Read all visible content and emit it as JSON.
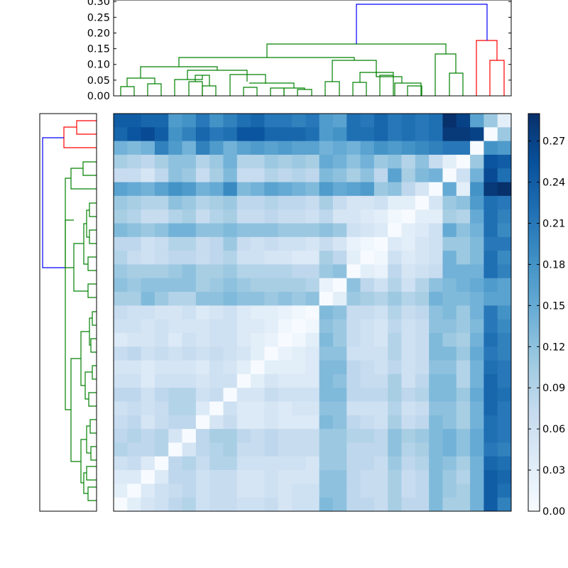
{
  "colors": {
    "cmap_low": "#f7fbff",
    "cmap_high": "#08306b",
    "link_root": "#0000ff",
    "cluster_big": "#008000",
    "cluster_small": "#ff0000",
    "frame": "#000000"
  },
  "chart_data": [
    {
      "type": "dendrogram",
      "orientation": "top",
      "title": "",
      "xlabel": "",
      "ylabel": "",
      "ylim": [
        0,
        0.3
      ],
      "yticks": [
        0.0,
        0.05,
        0.1,
        0.15,
        0.2,
        0.25,
        0.3
      ],
      "ytick_labels": [
        "0.00",
        "0.05",
        "0.10",
        "0.15",
        "0.20",
        "0.25",
        "0.30"
      ],
      "leaf_count": 29,
      "clusters": [
        {
          "color": "green",
          "leaves": 26
        },
        {
          "color": "red",
          "leaves": 3
        }
      ],
      "root_height": 0.29
    },
    {
      "type": "dendrogram",
      "orientation": "left",
      "title": "",
      "leaf_count": 29,
      "clusters": [
        {
          "color": "red",
          "leaves": 3
        },
        {
          "color": "green",
          "leaves": 26
        }
      ],
      "root_height": 0.29,
      "tick_labels_shown": false
    },
    {
      "type": "heatmap",
      "title": "",
      "xlabel": "",
      "ylabel": "",
      "rows": 29,
      "cols": 29,
      "colormap": "Blues",
      "row_order": "top-to-bottom",
      "matrix": [
        [
          0.24,
          0.24,
          0.23,
          0.23,
          0.17,
          0.18,
          0.21,
          0.18,
          0.2,
          0.22,
          0.23,
          0.21,
          0.21,
          0.2,
          0.21,
          0.17,
          0.16,
          0.22,
          0.21,
          0.23,
          0.21,
          0.22,
          0.21,
          0.22,
          0.29,
          0.27,
          0.16,
          0.11,
          0.03
        ],
        [
          0.23,
          0.25,
          0.26,
          0.24,
          0.18,
          0.2,
          0.23,
          0.21,
          0.22,
          0.25,
          0.25,
          0.23,
          0.23,
          0.23,
          0.22,
          0.17,
          0.18,
          0.22,
          0.22,
          0.23,
          0.21,
          0.22,
          0.21,
          0.22,
          0.28,
          0.28,
          0.27,
          0.0,
          0.11
        ],
        [
          0.14,
          0.13,
          0.14,
          0.2,
          0.17,
          0.14,
          0.2,
          0.17,
          0.14,
          0.16,
          0.17,
          0.16,
          0.17,
          0.16,
          0.16,
          0.14,
          0.15,
          0.14,
          0.16,
          0.18,
          0.17,
          0.18,
          0.19,
          0.2,
          0.21,
          0.21,
          0.0,
          0.18,
          0.17
        ],
        [
          0.1,
          0.09,
          0.08,
          0.1,
          0.12,
          0.12,
          0.09,
          0.11,
          0.14,
          0.09,
          0.09,
          0.11,
          0.1,
          0.11,
          0.1,
          0.15,
          0.14,
          0.12,
          0.14,
          0.11,
          0.12,
          0.09,
          0.12,
          0.07,
          0.03,
          0.0,
          0.11,
          0.25,
          0.24
        ],
        [
          0.07,
          0.07,
          0.05,
          0.08,
          0.12,
          0.11,
          0.07,
          0.1,
          0.13,
          0.07,
          0.07,
          0.09,
          0.08,
          0.09,
          0.08,
          0.13,
          0.12,
          0.1,
          0.12,
          0.08,
          0.16,
          0.1,
          0.13,
          0.14,
          0.0,
          0.06,
          0.14,
          0.26,
          0.22
        ],
        [
          0.16,
          0.15,
          0.14,
          0.16,
          0.18,
          0.17,
          0.14,
          0.15,
          0.19,
          0.13,
          0.14,
          0.16,
          0.15,
          0.14,
          0.13,
          0.17,
          0.15,
          0.16,
          0.17,
          0.11,
          0.12,
          0.08,
          0.05,
          0.0,
          0.15,
          0.03,
          0.18,
          0.28,
          0.29
        ],
        [
          0.11,
          0.1,
          0.09,
          0.09,
          0.12,
          0.11,
          0.09,
          0.1,
          0.11,
          0.08,
          0.08,
          0.09,
          0.08,
          0.08,
          0.07,
          0.1,
          0.07,
          0.05,
          0.05,
          0.06,
          0.03,
          0.03,
          0.0,
          0.05,
          0.11,
          0.12,
          0.17,
          0.22,
          0.21
        ],
        [
          0.1,
          0.09,
          0.07,
          0.07,
          0.09,
          0.1,
          0.07,
          0.09,
          0.1,
          0.07,
          0.07,
          0.08,
          0.07,
          0.07,
          0.06,
          0.08,
          0.05,
          0.05,
          0.04,
          0.03,
          0.01,
          0.0,
          0.03,
          0.03,
          0.1,
          0.09,
          0.15,
          0.22,
          0.2
        ],
        [
          0.13,
          0.12,
          0.11,
          0.12,
          0.14,
          0.14,
          0.12,
          0.12,
          0.13,
          0.12,
          0.12,
          0.12,
          0.11,
          0.11,
          0.11,
          0.12,
          0.11,
          0.06,
          0.05,
          0.04,
          0.0,
          0.03,
          0.04,
          0.06,
          0.15,
          0.12,
          0.14,
          0.22,
          0.19
        ],
        [
          0.08,
          0.08,
          0.06,
          0.07,
          0.09,
          0.09,
          0.07,
          0.08,
          0.11,
          0.07,
          0.06,
          0.07,
          0.06,
          0.06,
          0.05,
          0.07,
          0.05,
          0.02,
          0.01,
          0.0,
          0.04,
          0.03,
          0.05,
          0.06,
          0.11,
          0.11,
          0.13,
          0.21,
          0.21
        ],
        [
          0.09,
          0.07,
          0.06,
          0.07,
          0.08,
          0.08,
          0.07,
          0.08,
          0.09,
          0.06,
          0.06,
          0.05,
          0.05,
          0.04,
          0.04,
          0.1,
          0.08,
          0.03,
          0.0,
          0.01,
          0.06,
          0.04,
          0.05,
          0.06,
          0.14,
          0.11,
          0.13,
          0.22,
          0.19
        ],
        [
          0.11,
          0.1,
          0.1,
          0.1,
          0.11,
          0.12,
          0.1,
          0.1,
          0.11,
          0.09,
          0.09,
          0.09,
          0.09,
          0.08,
          0.08,
          0.11,
          0.12,
          0.0,
          0.03,
          0.02,
          0.08,
          0.05,
          0.06,
          0.07,
          0.14,
          0.14,
          0.14,
          0.22,
          0.2
        ],
        [
          0.12,
          0.11,
          0.12,
          0.12,
          0.12,
          0.12,
          0.1,
          0.11,
          0.12,
          0.11,
          0.1,
          0.1,
          0.1,
          0.1,
          0.09,
          0.02,
          0.0,
          0.12,
          0.08,
          0.06,
          0.09,
          0.06,
          0.09,
          0.12,
          0.13,
          0.14,
          0.15,
          0.17,
          0.16
        ],
        [
          0.1,
          0.1,
          0.13,
          0.11,
          0.09,
          0.09,
          0.12,
          0.12,
          0.13,
          0.12,
          0.12,
          0.11,
          0.12,
          0.11,
          0.12,
          0.0,
          0.03,
          0.11,
          0.1,
          0.09,
          0.11,
          0.09,
          0.1,
          0.14,
          0.13,
          0.13,
          0.14,
          0.16,
          0.16
        ],
        [
          0.07,
          0.06,
          0.06,
          0.05,
          0.05,
          0.06,
          0.04,
          0.05,
          0.06,
          0.04,
          0.03,
          0.03,
          0.02,
          0.01,
          0.0,
          0.13,
          0.12,
          0.07,
          0.07,
          0.06,
          0.09,
          0.07,
          0.08,
          0.12,
          0.13,
          0.11,
          0.14,
          0.21,
          0.18
        ],
        [
          0.06,
          0.06,
          0.05,
          0.06,
          0.05,
          0.05,
          0.05,
          0.06,
          0.06,
          0.04,
          0.04,
          0.03,
          0.01,
          0.0,
          0.01,
          0.12,
          0.11,
          0.07,
          0.06,
          0.05,
          0.08,
          0.06,
          0.07,
          0.12,
          0.12,
          0.11,
          0.13,
          0.21,
          0.19
        ],
        [
          0.04,
          0.05,
          0.05,
          0.06,
          0.04,
          0.06,
          0.05,
          0.06,
          0.06,
          0.04,
          0.03,
          0.02,
          0.0,
          0.01,
          0.03,
          0.13,
          0.11,
          0.07,
          0.06,
          0.05,
          0.09,
          0.06,
          0.07,
          0.13,
          0.11,
          0.1,
          0.14,
          0.22,
          0.2
        ],
        [
          0.07,
          0.08,
          0.06,
          0.07,
          0.06,
          0.07,
          0.06,
          0.07,
          0.06,
          0.05,
          0.03,
          0.0,
          0.02,
          0.03,
          0.04,
          0.12,
          0.12,
          0.06,
          0.06,
          0.06,
          0.09,
          0.06,
          0.07,
          0.13,
          0.13,
          0.11,
          0.15,
          0.21,
          0.2
        ],
        [
          0.05,
          0.05,
          0.04,
          0.05,
          0.05,
          0.05,
          0.04,
          0.06,
          0.05,
          0.03,
          0.0,
          0.03,
          0.03,
          0.03,
          0.04,
          0.13,
          0.13,
          0.08,
          0.07,
          0.06,
          0.08,
          0.06,
          0.07,
          0.12,
          0.12,
          0.09,
          0.14,
          0.22,
          0.21
        ],
        [
          0.06,
          0.06,
          0.04,
          0.06,
          0.06,
          0.06,
          0.05,
          0.06,
          0.06,
          0.0,
          0.03,
          0.05,
          0.04,
          0.04,
          0.04,
          0.13,
          0.12,
          0.08,
          0.07,
          0.07,
          0.1,
          0.06,
          0.08,
          0.13,
          0.13,
          0.09,
          0.14,
          0.23,
          0.21
        ],
        [
          0.08,
          0.08,
          0.06,
          0.08,
          0.09,
          0.09,
          0.06,
          0.07,
          0.0,
          0.05,
          0.05,
          0.07,
          0.06,
          0.06,
          0.06,
          0.13,
          0.13,
          0.08,
          0.08,
          0.08,
          0.1,
          0.08,
          0.09,
          0.13,
          0.13,
          0.11,
          0.15,
          0.23,
          0.22
        ],
        [
          0.06,
          0.07,
          0.06,
          0.07,
          0.09,
          0.09,
          0.04,
          0.0,
          0.06,
          0.04,
          0.04,
          0.05,
          0.04,
          0.05,
          0.05,
          0.12,
          0.12,
          0.06,
          0.06,
          0.06,
          0.09,
          0.06,
          0.07,
          0.12,
          0.12,
          0.1,
          0.14,
          0.23,
          0.21
        ],
        [
          0.07,
          0.08,
          0.05,
          0.07,
          0.08,
          0.08,
          0.0,
          0.05,
          0.07,
          0.04,
          0.04,
          0.05,
          0.04,
          0.04,
          0.04,
          0.13,
          0.12,
          0.08,
          0.07,
          0.06,
          0.1,
          0.07,
          0.08,
          0.13,
          0.12,
          0.1,
          0.14,
          0.22,
          0.21
        ],
        [
          0.08,
          0.09,
          0.08,
          0.09,
          0.05,
          0.0,
          0.08,
          0.1,
          0.1,
          0.08,
          0.07,
          0.08,
          0.07,
          0.07,
          0.07,
          0.11,
          0.11,
          0.09,
          0.09,
          0.08,
          0.12,
          0.1,
          0.11,
          0.13,
          0.14,
          0.12,
          0.15,
          0.22,
          0.21
        ],
        [
          0.09,
          0.08,
          0.08,
          0.09,
          0.0,
          0.05,
          0.08,
          0.09,
          0.1,
          0.07,
          0.07,
          0.08,
          0.07,
          0.07,
          0.07,
          0.11,
          0.11,
          0.08,
          0.08,
          0.08,
          0.12,
          0.09,
          0.1,
          0.13,
          0.14,
          0.12,
          0.15,
          0.21,
          0.2
        ],
        [
          0.06,
          0.07,
          0.04,
          0.0,
          0.08,
          0.09,
          0.07,
          0.09,
          0.09,
          0.06,
          0.06,
          0.06,
          0.06,
          0.06,
          0.05,
          0.11,
          0.11,
          0.08,
          0.08,
          0.07,
          0.11,
          0.08,
          0.09,
          0.13,
          0.12,
          0.1,
          0.14,
          0.23,
          0.22
        ],
        [
          0.04,
          0.04,
          0.0,
          0.04,
          0.08,
          0.08,
          0.06,
          0.07,
          0.07,
          0.05,
          0.05,
          0.06,
          0.05,
          0.05,
          0.05,
          0.12,
          0.12,
          0.08,
          0.07,
          0.07,
          0.1,
          0.07,
          0.08,
          0.13,
          0.11,
          0.09,
          0.14,
          0.24,
          0.23
        ],
        [
          0.03,
          0.0,
          0.04,
          0.06,
          0.07,
          0.08,
          0.06,
          0.07,
          0.07,
          0.05,
          0.05,
          0.06,
          0.05,
          0.06,
          0.06,
          0.12,
          0.12,
          0.08,
          0.07,
          0.07,
          0.1,
          0.07,
          0.08,
          0.13,
          0.11,
          0.1,
          0.14,
          0.24,
          0.22
        ],
        [
          0.0,
          0.03,
          0.05,
          0.06,
          0.08,
          0.09,
          0.06,
          0.07,
          0.07,
          0.06,
          0.06,
          0.07,
          0.05,
          0.06,
          0.06,
          0.13,
          0.12,
          0.08,
          0.08,
          0.07,
          0.1,
          0.08,
          0.08,
          0.13,
          0.1,
          0.1,
          0.14,
          0.24,
          0.2
        ]
      ]
    },
    {
      "type": "colorbar",
      "title": "",
      "range": [
        0,
        0.29
      ],
      "ticks": [
        0.0,
        0.03,
        0.06,
        0.09,
        0.12,
        0.15,
        0.18,
        0.21,
        0.24,
        0.27
      ],
      "tick_labels": [
        "0.00",
        "0.03",
        "0.06",
        "0.09",
        "0.12",
        "0.15",
        "0.18",
        "0.21",
        "0.24",
        "0.27"
      ]
    }
  ]
}
